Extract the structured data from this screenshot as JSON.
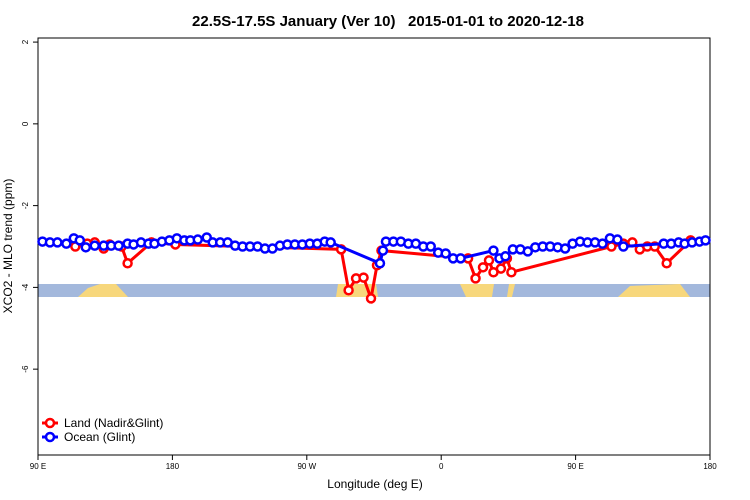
{
  "chart_data": {
    "type": "line",
    "title": "22.5S-17.5S January (Ver 10)   2015-01-01 to 2020-12-18",
    "x_label": "Longitude (deg E)",
    "y_label": "XCO2 - MLO trend (ppm)",
    "xlim": [
      90,
      540
    ],
    "xticks": [
      {
        "value": 90,
        "label": "90 E"
      },
      180,
      {
        "value": 270,
        "label": "90 W"
      },
      {
        "value": 360,
        "label": "0"
      },
      {
        "value": 450,
        "label": "90 E"
      },
      {
        "value": 540,
        "label": "180"
      }
    ],
    "ylim": [
      -8.1,
      2.1
    ],
    "yticks": [
      2,
      0,
      -2,
      -4,
      -6
    ],
    "legend": "bottom-left",
    "series": [
      {
        "name": "Land (Nadir&Glint)",
        "color": "#ff0000",
        "x": [
          115,
          123,
          128,
          134,
          138,
          146,
          150,
          166,
          182,
          293,
          298,
          303,
          308,
          313,
          317,
          320,
          378,
          383,
          388,
          392,
          395,
          400,
          404,
          407,
          474,
          482,
          488,
          493,
          498,
          503,
          511,
          527
        ],
        "values": [
          -3.0,
          -2.93,
          -2.9,
          -3.05,
          -2.95,
          -3.0,
          -3.41,
          -2.9,
          -2.95,
          -3.07,
          -4.07,
          -3.78,
          -3.76,
          -4.27,
          -3.46,
          -3.1,
          -3.29,
          -3.78,
          -3.51,
          -3.34,
          -3.63,
          -3.54,
          -3.29,
          -3.63,
          -3.0,
          -2.93,
          -2.9,
          -3.07,
          -3.0,
          -3.0,
          -3.41,
          -2.85
        ]
      },
      {
        "name": "Ocean (Glint)",
        "color": "#0000ff",
        "x": [
          93,
          98,
          103,
          109,
          114,
          118,
          122,
          128,
          134,
          139,
          144,
          150,
          154,
          159,
          164,
          168,
          173,
          178,
          183,
          188,
          192,
          197,
          203,
          207,
          212,
          217,
          222,
          227,
          232,
          237,
          242,
          247,
          252,
          257,
          262,
          267,
          272,
          277,
          282,
          286,
          319,
          321,
          323,
          328,
          333,
          338,
          343,
          348,
          353,
          358,
          363,
          368,
          373,
          395,
          399,
          403,
          408,
          413,
          418,
          423,
          428,
          433,
          438,
          443,
          448,
          453,
          458,
          463,
          468,
          473,
          478,
          482,
          509,
          514,
          519,
          523,
          528,
          533,
          537
        ],
        "values": [
          -2.88,
          -2.9,
          -2.9,
          -2.93,
          -2.8,
          -2.85,
          -3.02,
          -2.98,
          -2.98,
          -2.98,
          -2.98,
          -2.93,
          -2.95,
          -2.9,
          -2.93,
          -2.93,
          -2.88,
          -2.85,
          -2.8,
          -2.85,
          -2.85,
          -2.83,
          -2.78,
          -2.9,
          -2.9,
          -2.9,
          -2.98,
          -3.0,
          -3.0,
          -3.0,
          -3.05,
          -3.05,
          -2.98,
          -2.95,
          -2.95,
          -2.95,
          -2.93,
          -2.93,
          -2.88,
          -2.9,
          -3.41,
          -3.1,
          -2.88,
          -2.88,
          -2.88,
          -2.93,
          -2.93,
          -3.0,
          -3.0,
          -3.15,
          -3.17,
          -3.29,
          -3.29,
          -3.1,
          -3.29,
          -3.24,
          -3.07,
          -3.07,
          -3.12,
          -3.02,
          -3.0,
          -3.0,
          -3.02,
          -3.05,
          -2.93,
          -2.88,
          -2.9,
          -2.9,
          -2.93,
          -2.8,
          -2.83,
          -3.0,
          -2.93,
          -2.93,
          -2.9,
          -2.93,
          -2.9,
          -2.88,
          -2.85
        ]
      }
    ]
  }
}
